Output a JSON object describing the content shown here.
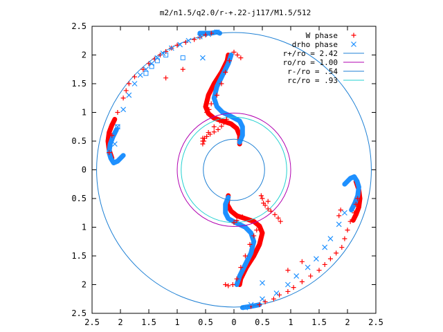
{
  "chart_data": {
    "type": "scatter",
    "title": "m2/n1.5/q2.0/r-+.22-j117/M1.5/512",
    "xlim": [
      -2.5,
      2.5
    ],
    "ylim": [
      -2.5,
      2.5
    ],
    "x_ticks": [
      -2.5,
      -2,
      -1.5,
      -1,
      -0.5,
      0,
      0.5,
      1,
      1.5,
      2,
      2.5
    ],
    "x_tick_labels": [
      "2.5",
      "2",
      "1.5",
      "1",
      "0.5",
      "0",
      "0.5",
      "1",
      "1.5",
      "2",
      "2.5"
    ],
    "y_ticks": [
      2.5,
      2,
      1.5,
      1,
      0.5,
      0,
      -0.5,
      -1,
      -1.5,
      -2,
      -2.5
    ],
    "y_tick_labels": [
      "2.5",
      "2",
      "1.5",
      "1",
      "0.5",
      "0",
      "0.5",
      "1",
      "1.5",
      "2",
      "2.5"
    ],
    "grid": false,
    "legend_position": "top-right",
    "series": [
      {
        "name": "W phase",
        "marker": "plus",
        "color": "#ff0000",
        "x": [
          -2.15,
          -2.2,
          -2.05,
          -1.95,
          -1.9,
          -1.85,
          -1.75,
          -1.6,
          -1.5,
          -1.4,
          -1.3,
          -1.2,
          -1.1,
          -1.0,
          -0.85,
          -0.7,
          -0.6,
          -0.5,
          -0.4,
          -1.2,
          -0.9,
          -0.55,
          -0.55,
          -0.53,
          -0.48,
          -0.42,
          -0.35,
          -0.28,
          -0.22,
          -0.18,
          -0.13,
          -0.48,
          -0.44,
          -0.4,
          -0.3,
          -0.22,
          -0.15,
          -0.08,
          0.0,
          0.06,
          0.12,
          -0.25,
          -0.35,
          -0.45,
          -0.52,
          -0.55,
          2.18,
          2.15,
          2.12,
          2.05,
          2.0,
          1.95,
          1.9,
          1.88,
          1.85,
          1.8,
          1.7,
          1.6,
          1.5,
          1.35,
          1.2,
          1.05,
          0.95,
          0.8,
          0.7,
          0.55,
          0.45,
          0.3,
          1.2,
          0.95,
          0.6,
          0.48,
          0.5,
          0.52,
          0.55,
          0.6,
          0.65,
          0.72,
          0.78,
          0.82,
          0.45,
          0.4,
          0.35,
          0.28,
          0.2,
          0.12,
          0.05,
          -0.02,
          -0.1,
          -0.15,
          0.15,
          0.05,
          0.0
        ],
        "y": [
          0.6,
          0.3,
          1.0,
          1.25,
          1.38,
          1.5,
          1.62,
          1.75,
          1.85,
          1.93,
          2.0,
          2.06,
          2.12,
          2.17,
          2.22,
          2.27,
          2.31,
          2.35,
          2.38,
          1.6,
          1.75,
          0.55,
          0.45,
          0.5,
          0.58,
          0.62,
          0.66,
          0.7,
          0.76,
          0.82,
          0.88,
          1.0,
          1.05,
          1.15,
          1.3,
          1.5,
          1.7,
          1.9,
          2.05,
          2.0,
          1.95,
          0.85,
          0.75,
          0.65,
          0.55,
          0.5,
          -0.5,
          -0.6,
          -0.75,
          -0.9,
          -1.05,
          -1.2,
          -1.35,
          -0.7,
          -0.8,
          -1.45,
          -1.55,
          -1.65,
          -1.75,
          -1.85,
          -1.95,
          -2.05,
          -2.12,
          -2.18,
          -2.25,
          -2.3,
          -2.35,
          -2.38,
          -1.6,
          -1.75,
          -0.55,
          -0.45,
          -0.5,
          -0.58,
          -0.62,
          -0.68,
          -0.72,
          -0.78,
          -0.84,
          -0.9,
          -1.0,
          -1.05,
          -1.15,
          -1.3,
          -1.5,
          -1.7,
          -1.9,
          -2.0,
          -2.02,
          -2.0,
          -0.82,
          -0.88,
          -0.92
        ]
      },
      {
        "name": "drho phase",
        "marker": "cross",
        "color": "#1e90ff",
        "x": [
          -2.1,
          -2.05,
          -1.95,
          -1.85,
          -1.75,
          -1.65,
          -1.55,
          -1.45,
          -1.35,
          -1.25,
          -1.1,
          -0.95,
          -0.8,
          -0.6,
          -0.45,
          -0.3,
          1.95,
          1.85,
          1.7,
          1.6,
          1.45,
          1.3,
          1.1,
          0.95,
          0.75,
          0.5,
          0.3,
          0.2,
          -0.55,
          0.5
        ],
        "y": [
          0.45,
          0.75,
          1.05,
          1.3,
          1.5,
          1.65,
          1.75,
          1.85,
          1.95,
          2.03,
          2.12,
          2.18,
          2.25,
          2.32,
          2.36,
          2.4,
          -0.75,
          -0.95,
          -1.2,
          -1.35,
          -1.55,
          -1.7,
          -1.85,
          -2.0,
          -2.15,
          -2.25,
          -2.35,
          -2.4,
          1.95,
          -1.97
        ]
      }
    ],
    "circles": [
      {
        "name": "r+/ro = 2.42",
        "r": 2.42,
        "color": "#1c7fd4"
      },
      {
        "name": "ro/ro = 1.00",
        "r": 1.0,
        "color": "#b000b0"
      },
      {
        "name": "r-/ro = .54",
        "r": 0.54,
        "color": "#1c7fd4"
      },
      {
        "name": "rc/ro = .93",
        "r": 0.93,
        "color": "#20d0d0"
      }
    ],
    "bands": [
      {
        "series": "W phase",
        "color": "#ff0000",
        "points": [
          [
            -2.15,
            0.2
          ],
          [
            -2.2,
            0.35
          ],
          [
            -2.22,
            0.5
          ],
          [
            -2.2,
            0.65
          ],
          [
            -2.15,
            0.78
          ],
          [
            -2.1,
            0.88
          ]
        ]
      },
      {
        "series": "drho phase",
        "color": "#1e90ff",
        "points": [
          [
            -1.95,
            0.25
          ],
          [
            -2.05,
            0.15
          ],
          [
            -2.12,
            0.12
          ],
          [
            -2.17,
            0.2
          ],
          [
            -2.2,
            0.3
          ],
          [
            -2.18,
            0.45
          ],
          [
            -2.13,
            0.58
          ],
          [
            -2.07,
            0.7
          ]
        ]
      },
      {
        "series": "W phase",
        "color": "#ff0000",
        "points": [
          [
            0.1,
            0.45
          ],
          [
            0.1,
            0.6
          ],
          [
            0.05,
            0.72
          ],
          [
            -0.05,
            0.8
          ],
          [
            -0.2,
            0.85
          ],
          [
            -0.35,
            0.9
          ],
          [
            -0.45,
            0.98
          ],
          [
            -0.5,
            1.1
          ],
          [
            -0.45,
            1.3
          ],
          [
            -0.35,
            1.5
          ],
          [
            -0.22,
            1.7
          ],
          [
            -0.12,
            1.9
          ],
          [
            -0.1,
            2.0
          ]
        ]
      },
      {
        "series": "drho phase",
        "color": "#1e90ff",
        "points": [
          [
            0.1,
            0.48
          ],
          [
            0.15,
            0.6
          ],
          [
            0.15,
            0.75
          ],
          [
            0.1,
            0.85
          ],
          [
            -0.05,
            0.93
          ],
          [
            -0.2,
            1.0
          ],
          [
            -0.3,
            1.1
          ],
          [
            -0.35,
            1.25
          ],
          [
            -0.3,
            1.45
          ],
          [
            -0.2,
            1.65
          ],
          [
            -0.1,
            1.85
          ],
          [
            -0.05,
            2.0
          ]
        ]
      },
      {
        "series": "drho phase",
        "color": "#1e90ff",
        "points": [
          [
            -0.6,
            2.38
          ],
          [
            -0.4,
            2.38
          ],
          [
            -0.3,
            2.4
          ],
          [
            -0.25,
            2.38
          ]
        ]
      },
      {
        "series": "W phase",
        "color": "#ff0000",
        "points": [
          [
            -0.1,
            -0.45
          ],
          [
            -0.12,
            -0.6
          ],
          [
            -0.05,
            -0.72
          ],
          [
            0.05,
            -0.8
          ],
          [
            0.2,
            -0.85
          ],
          [
            0.35,
            -0.9
          ],
          [
            0.45,
            -0.98
          ],
          [
            0.5,
            -1.1
          ],
          [
            0.45,
            -1.3
          ],
          [
            0.35,
            -1.5
          ],
          [
            0.22,
            -1.7
          ],
          [
            0.12,
            -1.9
          ],
          [
            0.1,
            -2.0
          ]
        ]
      },
      {
        "series": "drho phase",
        "color": "#1e90ff",
        "points": [
          [
            -0.1,
            -0.48
          ],
          [
            -0.15,
            -0.6
          ],
          [
            -0.15,
            -0.75
          ],
          [
            -0.1,
            -0.85
          ],
          [
            0.05,
            -0.93
          ],
          [
            0.2,
            -1.0
          ],
          [
            0.3,
            -1.1
          ],
          [
            0.35,
            -1.25
          ],
          [
            0.3,
            -1.45
          ],
          [
            0.2,
            -1.65
          ],
          [
            0.1,
            -1.85
          ],
          [
            0.05,
            -2.0
          ]
        ]
      },
      {
        "series": "W phase",
        "color": "#ff0000",
        "points": [
          [
            2.15,
            -0.2
          ],
          [
            2.2,
            -0.35
          ],
          [
            2.22,
            -0.5
          ],
          [
            2.2,
            -0.65
          ],
          [
            2.15,
            -0.78
          ],
          [
            2.1,
            -0.88
          ]
        ]
      },
      {
        "series": "drho phase",
        "color": "#1e90ff",
        "points": [
          [
            1.95,
            -0.25
          ],
          [
            2.05,
            -0.15
          ],
          [
            2.12,
            -0.12
          ],
          [
            2.17,
            -0.2
          ],
          [
            2.2,
            -0.3
          ],
          [
            2.18,
            -0.45
          ],
          [
            2.13,
            -0.58
          ],
          [
            2.07,
            -0.7
          ]
        ]
      },
      {
        "series": "drho phase",
        "color": "#1e90ff",
        "points": [
          [
            0.15,
            -2.4
          ],
          [
            0.3,
            -2.38
          ],
          [
            0.45,
            -2.35
          ]
        ]
      }
    ],
    "open_markers": {
      "series": "drho phase",
      "color": "#1e90ff",
      "x": [
        -1.55,
        -1.45,
        -1.35,
        -1.2,
        -0.9,
        -2.05
      ],
      "y": [
        1.68,
        1.8,
        1.9,
        2.0,
        1.95,
        0.75
      ]
    }
  }
}
